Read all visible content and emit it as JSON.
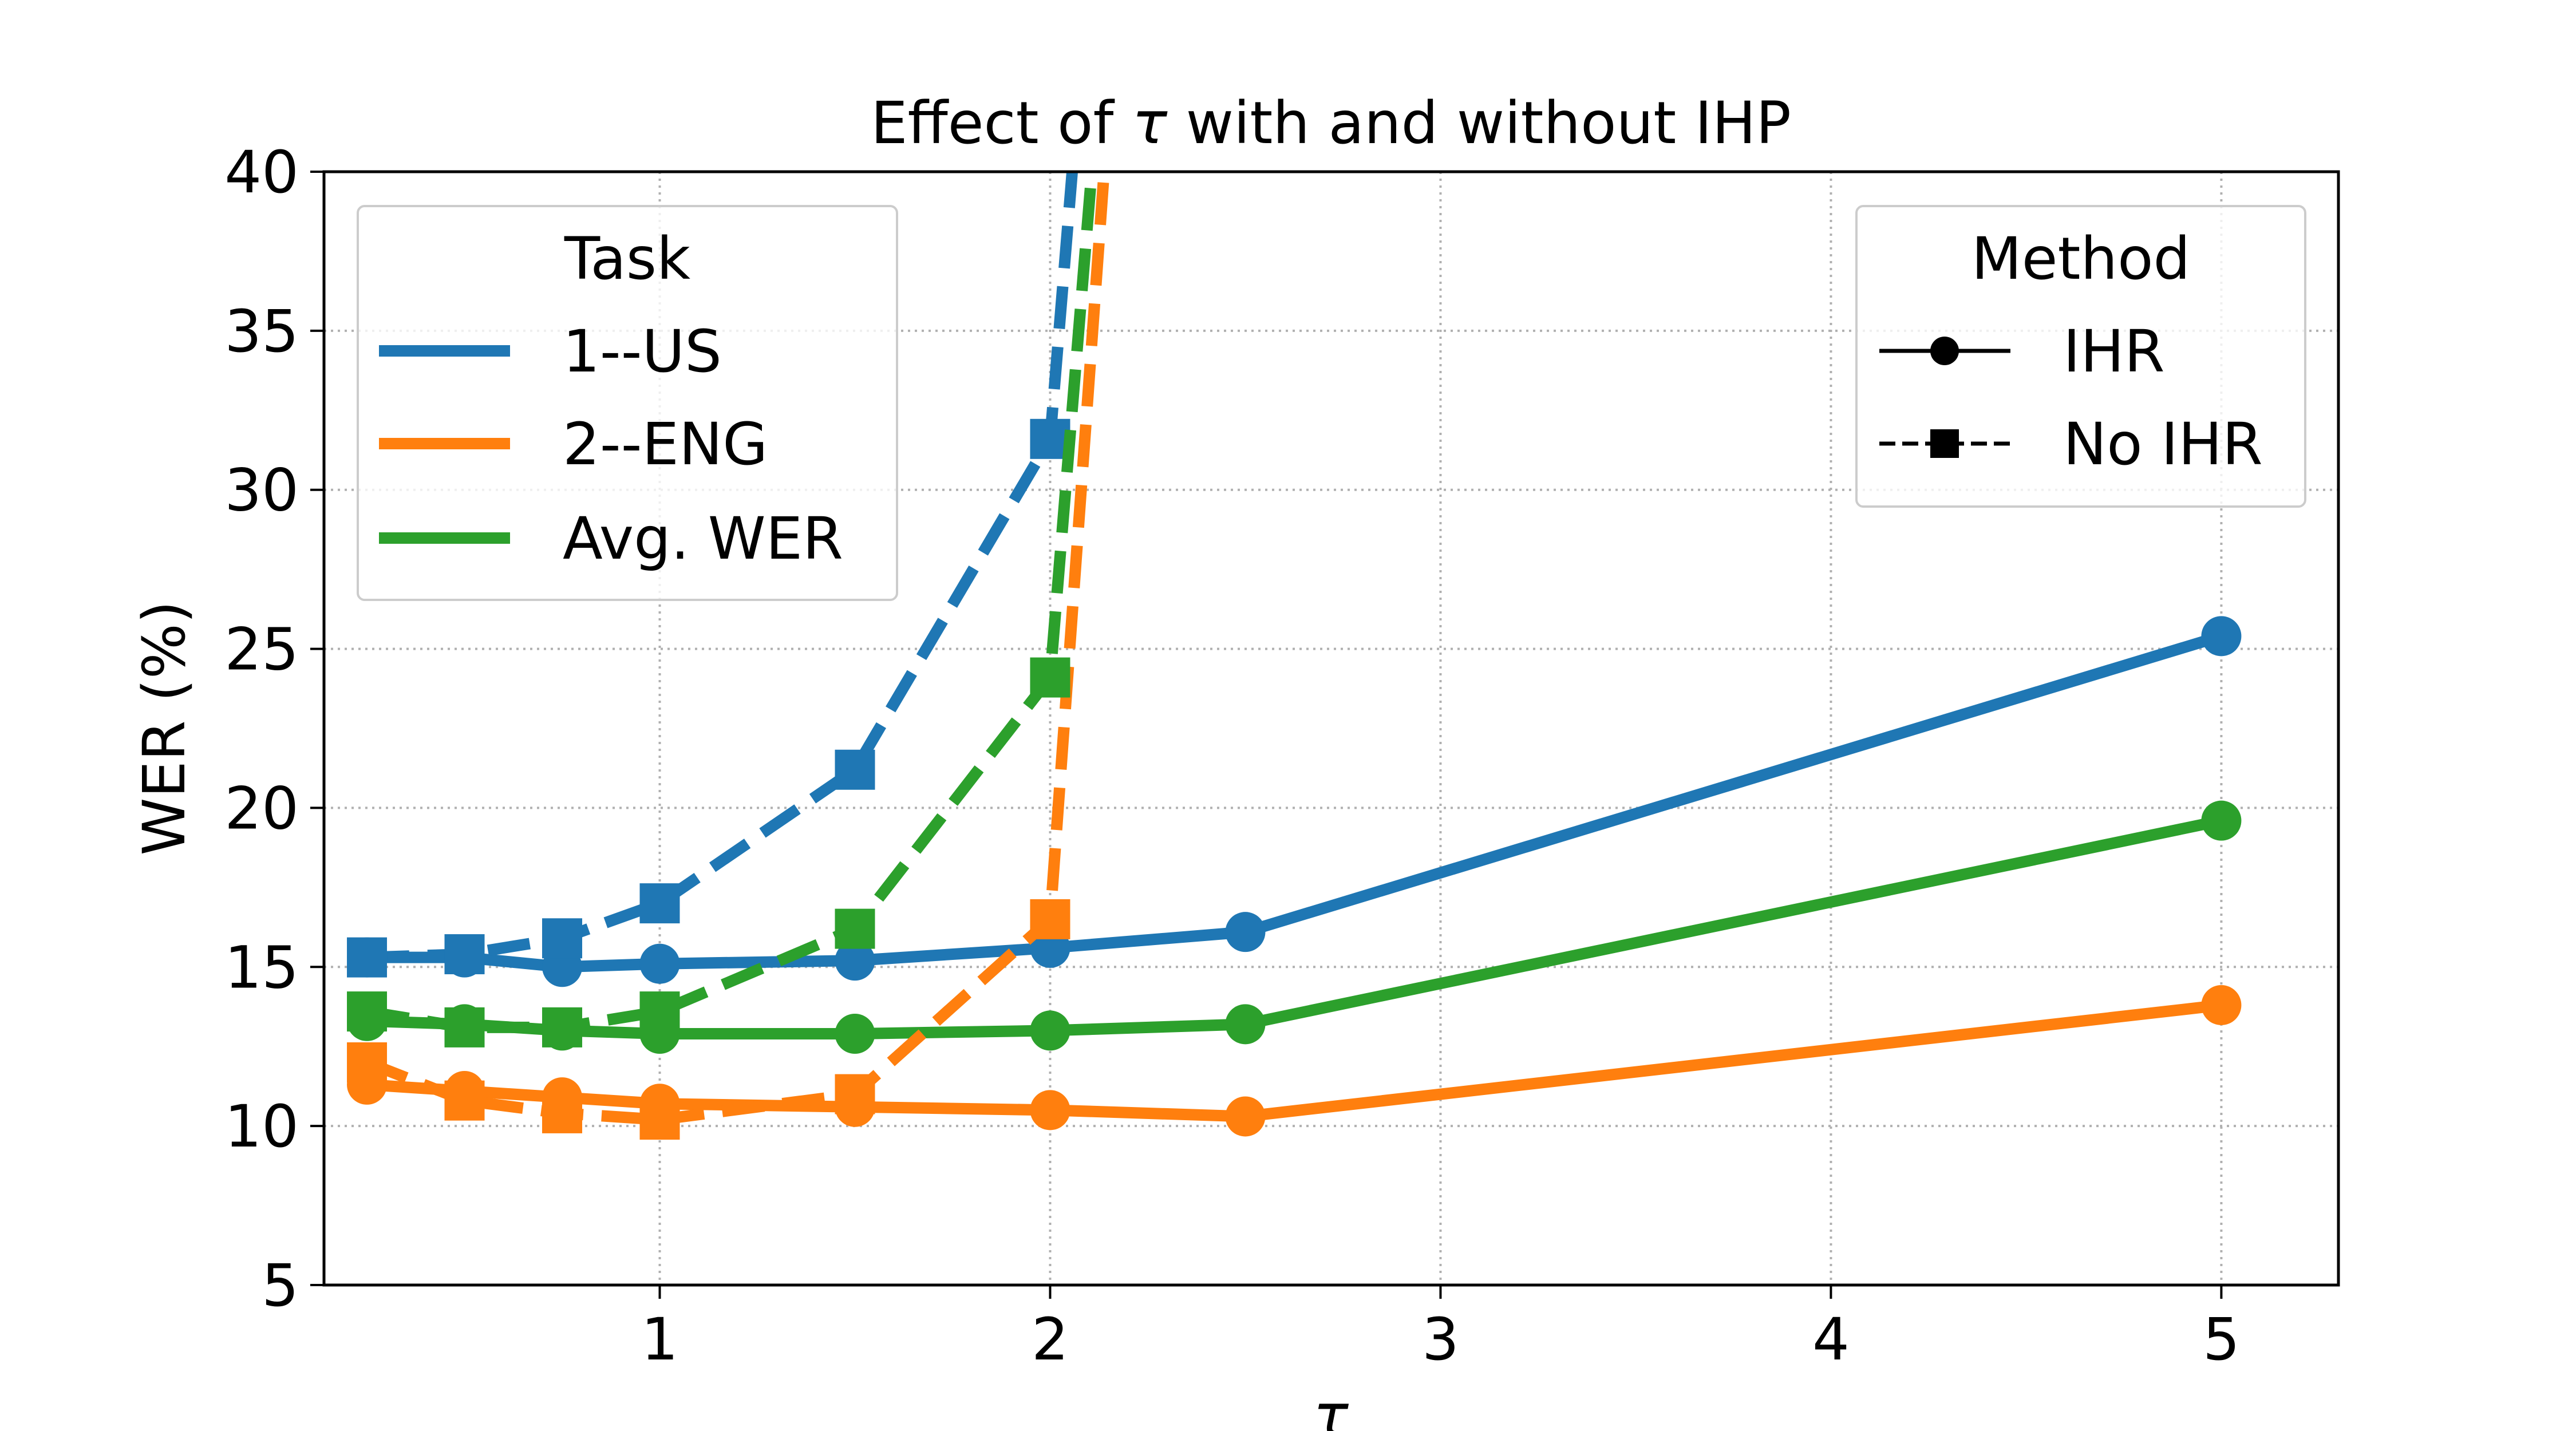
{
  "chart_data": {
    "type": "line",
    "title_prefix": "Effect of ",
    "title_symbol": "τ",
    "title_suffix": " with and without IHP",
    "xlabel": "τ",
    "ylabel": "WER (%)",
    "xlim": [
      0.14,
      5.3
    ],
    "ylim": [
      5,
      40
    ],
    "xticks": [
      1,
      2,
      3,
      4,
      5
    ],
    "yticks": [
      5,
      10,
      15,
      20,
      25,
      30,
      35,
      40
    ],
    "grid": true,
    "series": [
      {
        "name": "1--US IHR",
        "task": "1--US",
        "method": "IHR",
        "color": "#1f77b4",
        "x": [
          0.25,
          0.5,
          0.75,
          1.0,
          1.5,
          2.0,
          2.5,
          5.0
        ],
        "y": [
          15.3,
          15.3,
          15.0,
          15.1,
          15.2,
          15.6,
          16.1,
          25.4
        ]
      },
      {
        "name": "2--ENG IHR",
        "task": "2--ENG",
        "method": "IHR",
        "color": "#ff7f0e",
        "x": [
          0.25,
          0.5,
          0.75,
          1.0,
          1.5,
          2.0,
          2.5,
          5.0
        ],
        "y": [
          11.3,
          11.1,
          10.9,
          10.7,
          10.6,
          10.5,
          10.3,
          13.8
        ]
      },
      {
        "name": "Avg. WER IHR",
        "task": "Avg. WER",
        "method": "IHR",
        "color": "#2ca02c",
        "x": [
          0.25,
          0.5,
          0.75,
          1.0,
          1.5,
          2.0,
          2.5,
          5.0
        ],
        "y": [
          13.3,
          13.2,
          13.0,
          12.9,
          12.9,
          13.0,
          13.2,
          19.6
        ]
      },
      {
        "name": "1--US No IHR",
        "task": "1--US",
        "method": "No IHR",
        "color": "#1f77b4",
        "x": [
          0.25,
          0.5,
          0.75,
          1.0,
          1.5,
          2.0,
          2.07
        ],
        "y": [
          15.3,
          15.4,
          15.9,
          17.0,
          21.2,
          31.6,
          42.0
        ]
      },
      {
        "name": "2--ENG No IHR",
        "task": "2--ENG",
        "method": "No IHR",
        "color": "#ff7f0e",
        "x": [
          0.25,
          0.5,
          0.75,
          1.0,
          1.5,
          2.0,
          2.15
        ],
        "y": [
          12.0,
          10.8,
          10.4,
          10.2,
          11.0,
          16.5,
          42.0
        ]
      },
      {
        "name": "Avg. WER No IHR",
        "task": "Avg. WER",
        "method": "No IHR",
        "color": "#2ca02c",
        "x": [
          0.25,
          0.5,
          0.75,
          1.0,
          1.5,
          2.0,
          2.12
        ],
        "y": [
          13.6,
          13.1,
          13.1,
          13.6,
          16.2,
          24.1,
          42.0
        ]
      }
    ],
    "legend_task": {
      "title": "Task",
      "location": "upper-left",
      "entries": [
        {
          "label": "1--US",
          "color": "#1f77b4"
        },
        {
          "label": "2--ENG",
          "color": "#ff7f0e"
        },
        {
          "label": "Avg. WER",
          "color": "#2ca02c"
        }
      ]
    },
    "legend_method": {
      "title": "Method",
      "location": "upper-right",
      "entries": [
        {
          "label": "IHR",
          "style": "solid",
          "marker": "circle"
        },
        {
          "label": "No IHR",
          "style": "dashed",
          "marker": "square"
        }
      ]
    }
  }
}
